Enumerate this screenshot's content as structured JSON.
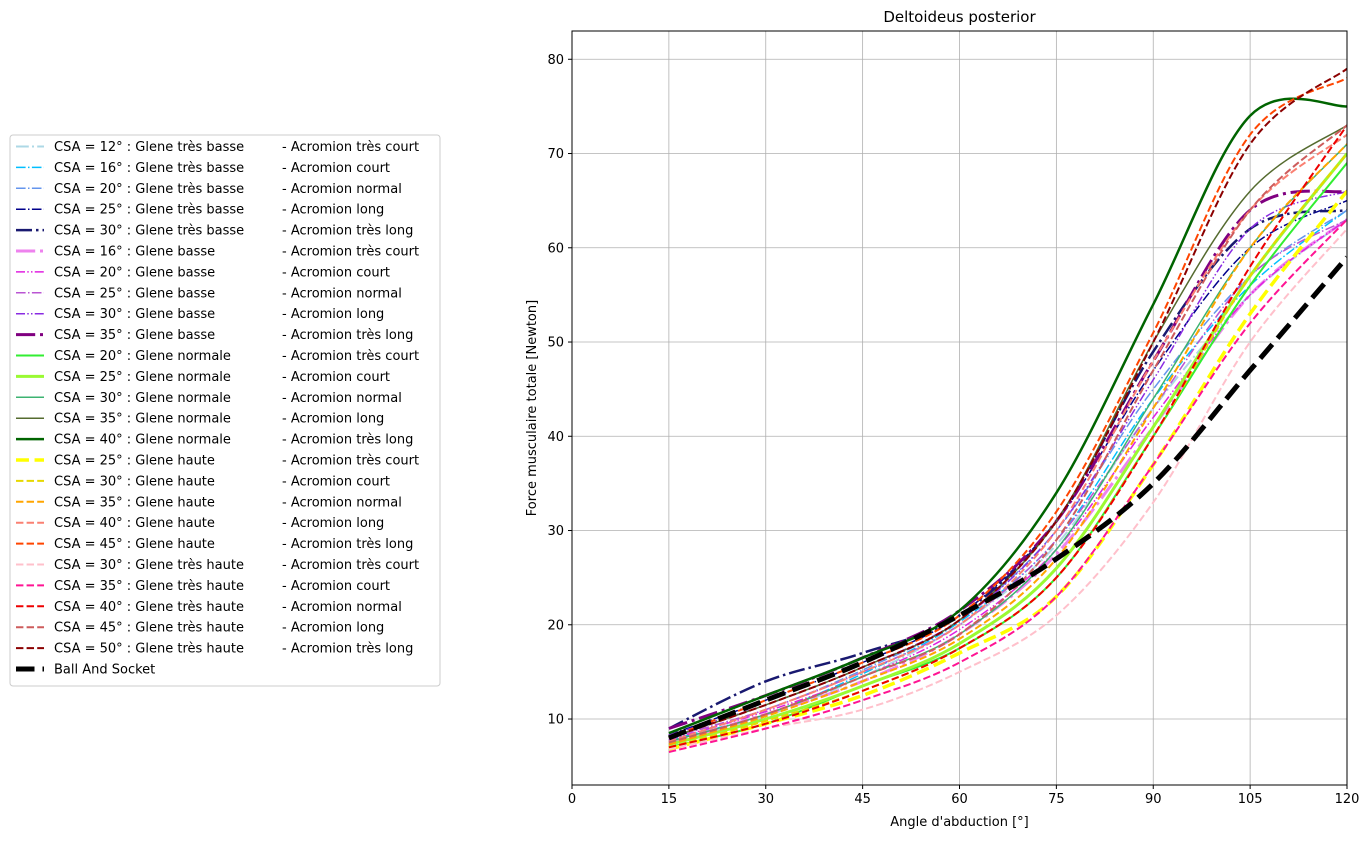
{
  "chart_data": {
    "type": "line",
    "title": "Deltoideus posterior",
    "xlabel": "Angle d'abduction [°]",
    "ylabel": "Force musculaire totale [Newton]",
    "xlim": [
      0,
      120
    ],
    "ylim": [
      3,
      83
    ],
    "xticks": [
      0,
      15,
      30,
      45,
      60,
      75,
      90,
      105,
      120
    ],
    "yticks": [
      10,
      20,
      30,
      40,
      50,
      60,
      70,
      80
    ],
    "grid": true,
    "legend_position": "left, outside plot",
    "x": [
      15,
      30,
      45,
      60,
      75,
      90,
      105,
      120
    ],
    "series": [
      {
        "name": "CSA = 12° : Glene très basse      -  Acromion très court",
        "color": "#add8e6",
        "dash": "dashdot",
        "width": 2,
        "values": [
          7.5,
          10.3,
          14.5,
          20.0,
          28.5,
          43.0,
          55.0,
          63.0
        ]
      },
      {
        "name": "CSA = 16° : Glene très basse      -  Acromion court",
        "color": "#00bfff",
        "dash": "dashdot",
        "width": 1.5,
        "values": [
          7.8,
          10.5,
          14.8,
          20.3,
          29.0,
          44.0,
          56.0,
          64.0
        ]
      },
      {
        "name": "CSA = 20° : Glene très basse      -  Acromion normal",
        "color": "#6495ed",
        "dash": "dashdot",
        "width": 1.5,
        "values": [
          8.0,
          11.0,
          15.2,
          20.5,
          30.0,
          45.0,
          57.0,
          64.0
        ]
      },
      {
        "name": "CSA = 25° : Glene très basse      -  Acromion long",
        "color": "#00008b",
        "dash": "dashdot",
        "width": 1.5,
        "values": [
          8.3,
          12.0,
          16.0,
          21.0,
          31.0,
          47.0,
          60.0,
          65.0
        ]
      },
      {
        "name": "CSA = 30° : Glene très basse      -  Acromion très long",
        "color": "#191970",
        "dash": "dashdot",
        "width": 2.5,
        "values": [
          9.0,
          14.0,
          17.0,
          21.0,
          31.0,
          49.0,
          62.0,
          64.0
        ]
      },
      {
        "name": "CSA = 16° : Glene basse           -  Acromion très court",
        "color": "#ee82ee",
        "dash": "dashdot",
        "width": 3,
        "values": [
          7.5,
          10.5,
          14.0,
          19.0,
          27.5,
          41.0,
          55.0,
          63.0
        ]
      },
      {
        "name": "CSA = 20° : Glene basse           -  Acromion court",
        "color": "#e020e0",
        "dash": "dashdotdot",
        "width": 1.5,
        "values": [
          7.8,
          10.8,
          14.5,
          19.5,
          28.0,
          42.0,
          55.0,
          63.0
        ]
      },
      {
        "name": "CSA = 25° : Glene basse           -  Acromion normal",
        "color": "#ba55d3",
        "dash": "dashdot",
        "width": 1.5,
        "values": [
          8.0,
          11.0,
          15.0,
          20.0,
          29.0,
          43.0,
          57.0,
          63.0
        ]
      },
      {
        "name": "CSA = 30° : Glene basse           -  Acromion long",
        "color": "#8a2be2",
        "dash": "dashdotdot",
        "width": 1.5,
        "values": [
          8.3,
          11.5,
          15.5,
          20.5,
          30.0,
          46.0,
          62.0,
          66.0
        ]
      },
      {
        "name": "CSA = 35° : Glene basse           -  Acromion très long",
        "color": "#800080",
        "dash": "dashdot",
        "width": 3,
        "values": [
          9.0,
          12.5,
          16.5,
          21.5,
          31.0,
          48.0,
          64.0,
          66.0
        ]
      },
      {
        "name": "CSA = 20° : Glene normale         -  Acromion très court",
        "color": "#32ee32",
        "dash": "solid",
        "width": 2,
        "values": [
          7.0,
          9.5,
          13.5,
          17.5,
          25.0,
          40.0,
          56.0,
          69.0
        ]
      },
      {
        "name": "CSA = 25° : Glene normale         -  Acromion court",
        "color": "#9afa32",
        "dash": "solid",
        "width": 3,
        "values": [
          7.3,
          10.0,
          13.5,
          18.0,
          26.0,
          41.0,
          57.0,
          70.0
        ]
      },
      {
        "name": "CSA = 30° : Glene normale         -  Acromion normal",
        "color": "#3cb371",
        "dash": "solid",
        "width": 1.5,
        "values": [
          7.6,
          10.5,
          14.5,
          19.0,
          28.0,
          44.0,
          60.0,
          71.0
        ]
      },
      {
        "name": "CSA = 35° : Glene normale         -  Acromion long",
        "color": "#556b2f",
        "dash": "solid",
        "width": 1.5,
        "values": [
          8.0,
          11.5,
          15.5,
          20.5,
          31.0,
          50.0,
          66.0,
          73.0
        ]
      },
      {
        "name": "CSA = 40° : Glene normale         -  Acromion très long",
        "color": "#006400",
        "dash": "solid",
        "width": 2.5,
        "values": [
          8.5,
          12.5,
          16.5,
          21.5,
          34.0,
          54.0,
          74.0,
          75.0
        ]
      },
      {
        "name": "CSA = 25° : Glene haute           -  Acromion très court",
        "color": "#ffff00",
        "dash": "dashed",
        "width": 3.5,
        "values": [
          6.8,
          9.5,
          12.5,
          17.0,
          23.0,
          37.0,
          53.0,
          66.0
        ]
      },
      {
        "name": "CSA = 30° : Glene haute           -  Acromion court",
        "color": "#e6d800",
        "dash": "dashed",
        "width": 2,
        "values": [
          7.0,
          9.8,
          13.0,
          17.5,
          25.0,
          40.0,
          57.0,
          70.0
        ]
      },
      {
        "name": "CSA = 35° : Glene haute           -  Acromion normal",
        "color": "#ffa500",
        "dash": "dashed",
        "width": 2,
        "values": [
          7.3,
          10.3,
          14.0,
          18.5,
          27.0,
          43.0,
          60.0,
          71.0
        ]
      },
      {
        "name": "CSA = 40° : Glene haute           -  Acromion long",
        "color": "#fa8072",
        "dash": "dashed",
        "width": 2,
        "values": [
          7.6,
          11.0,
          15.0,
          20.0,
          30.0,
          48.0,
          64.0,
          72.0
        ]
      },
      {
        "name": "CSA = 45° : Glene haute           -  Acromion très long",
        "color": "#ff4500",
        "dash": "dashed",
        "width": 2,
        "values": [
          8.0,
          12.0,
          16.0,
          21.0,
          32.0,
          51.0,
          72.0,
          78.0
        ]
      },
      {
        "name": "CSA = 30° : Glene très haute      -  Acromion très court",
        "color": "#ffc0cb",
        "dash": "dashed",
        "width": 2,
        "values": [
          6.8,
          9.0,
          11.0,
          15.0,
          21.0,
          33.0,
          50.0,
          62.0
        ]
      },
      {
        "name": "CSA = 35° : Glene très haute      -  Acromion court",
        "color": "#ff1493",
        "dash": "dashed",
        "width": 2,
        "values": [
          6.5,
          9.0,
          12.0,
          16.0,
          23.0,
          37.0,
          52.0,
          63.0
        ]
      },
      {
        "name": "CSA = 40° : Glene très haute      -  Acromion normal",
        "color": "#ee0000",
        "dash": "dashed",
        "width": 2,
        "values": [
          7.0,
          9.5,
          13.0,
          17.5,
          25.0,
          40.0,
          58.0,
          73.0
        ]
      },
      {
        "name": "CSA = 45° : Glene très haute      -  Acromion long",
        "color": "#cd5c5c",
        "dash": "dashed",
        "width": 2,
        "values": [
          7.5,
          10.5,
          14.5,
          19.0,
          29.0,
          47.0,
          64.0,
          73.0
        ]
      },
      {
        "name": "CSA = 50° : Glene très haute      -  Acromion très long",
        "color": "#8b0000",
        "dash": "dashed",
        "width": 2,
        "values": [
          8.0,
          11.5,
          15.5,
          20.5,
          31.0,
          50.0,
          71.0,
          79.0
        ]
      },
      {
        "name": "Ball And Socket",
        "color": "#000000",
        "dash": "dashed",
        "width": 5,
        "values": [
          8.0,
          12.0,
          16.0,
          21.0,
          27.0,
          35.0,
          47.0,
          59.0
        ]
      }
    ]
  }
}
